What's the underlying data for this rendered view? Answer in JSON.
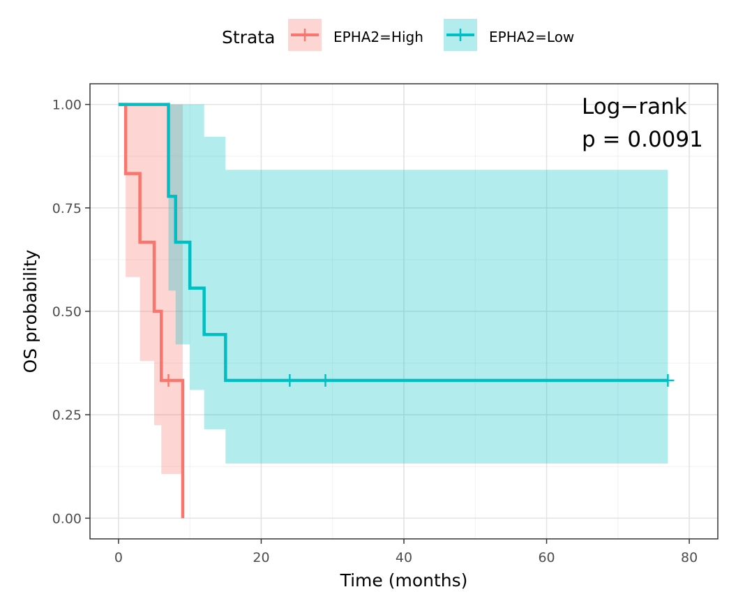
{
  "chart_data": {
    "type": "line",
    "subtype": "kaplan-meier",
    "xlabel": "Time (months)",
    "ylabel": "OS probability",
    "xlim": [
      -4,
      84
    ],
    "ylim": [
      -0.05,
      1.05
    ],
    "xticks": [
      0,
      20,
      40,
      60,
      80
    ],
    "xtick_labels": [
      "0",
      "20",
      "40",
      "60",
      "80"
    ],
    "yticks": [
      0,
      0.25,
      0.5,
      0.75,
      1.0
    ],
    "ytick_labels": [
      "0.00",
      "0.25",
      "0.50",
      "0.75",
      "1.00"
    ],
    "grid": true,
    "legend": {
      "title": "Strata",
      "position": "top",
      "entries": [
        "EPHA2=High",
        "EPHA2=Low"
      ]
    },
    "annotation": {
      "line1": "Log−rank",
      "line2": "p = 0.0091"
    },
    "series": [
      {
        "name": "EPHA2=High",
        "color": "#F8766D",
        "ci_color": "#F8766D",
        "steps": [
          [
            0,
            1.0
          ],
          [
            1,
            0.833
          ],
          [
            3,
            0.667
          ],
          [
            5,
            0.5
          ],
          [
            6,
            0.333
          ],
          [
            9,
            0.0
          ]
        ],
        "ci": [
          [
            0,
            1.0,
            1.0
          ],
          [
            1,
            0.583,
            1.0
          ],
          [
            3,
            0.38,
            1.0
          ],
          [
            5,
            0.225,
            1.0
          ],
          [
            6,
            0.107,
            1.0
          ],
          [
            9,
            null,
            null
          ]
        ],
        "end": 9,
        "censored": [
          [
            7,
            0.333
          ]
        ]
      },
      {
        "name": "EPHA2=Low",
        "color": "#00BFC4",
        "ci_color": "#00BFC4",
        "steps": [
          [
            0,
            1.0
          ],
          [
            7,
            0.778
          ],
          [
            8,
            0.667
          ],
          [
            10,
            0.556
          ],
          [
            12,
            0.444
          ],
          [
            15,
            0.333
          ]
        ],
        "ci": [
          [
            0,
            1.0,
            1.0
          ],
          [
            7,
            0.55,
            1.0
          ],
          [
            8,
            0.42,
            1.0
          ],
          [
            10,
            0.31,
            1.0
          ],
          [
            12,
            0.215,
            0.922
          ],
          [
            15,
            0.132,
            0.842
          ]
        ],
        "end": 77,
        "censored": [
          [
            24,
            0.333
          ],
          [
            29,
            0.333
          ],
          [
            77,
            0.333
          ]
        ]
      }
    ]
  }
}
